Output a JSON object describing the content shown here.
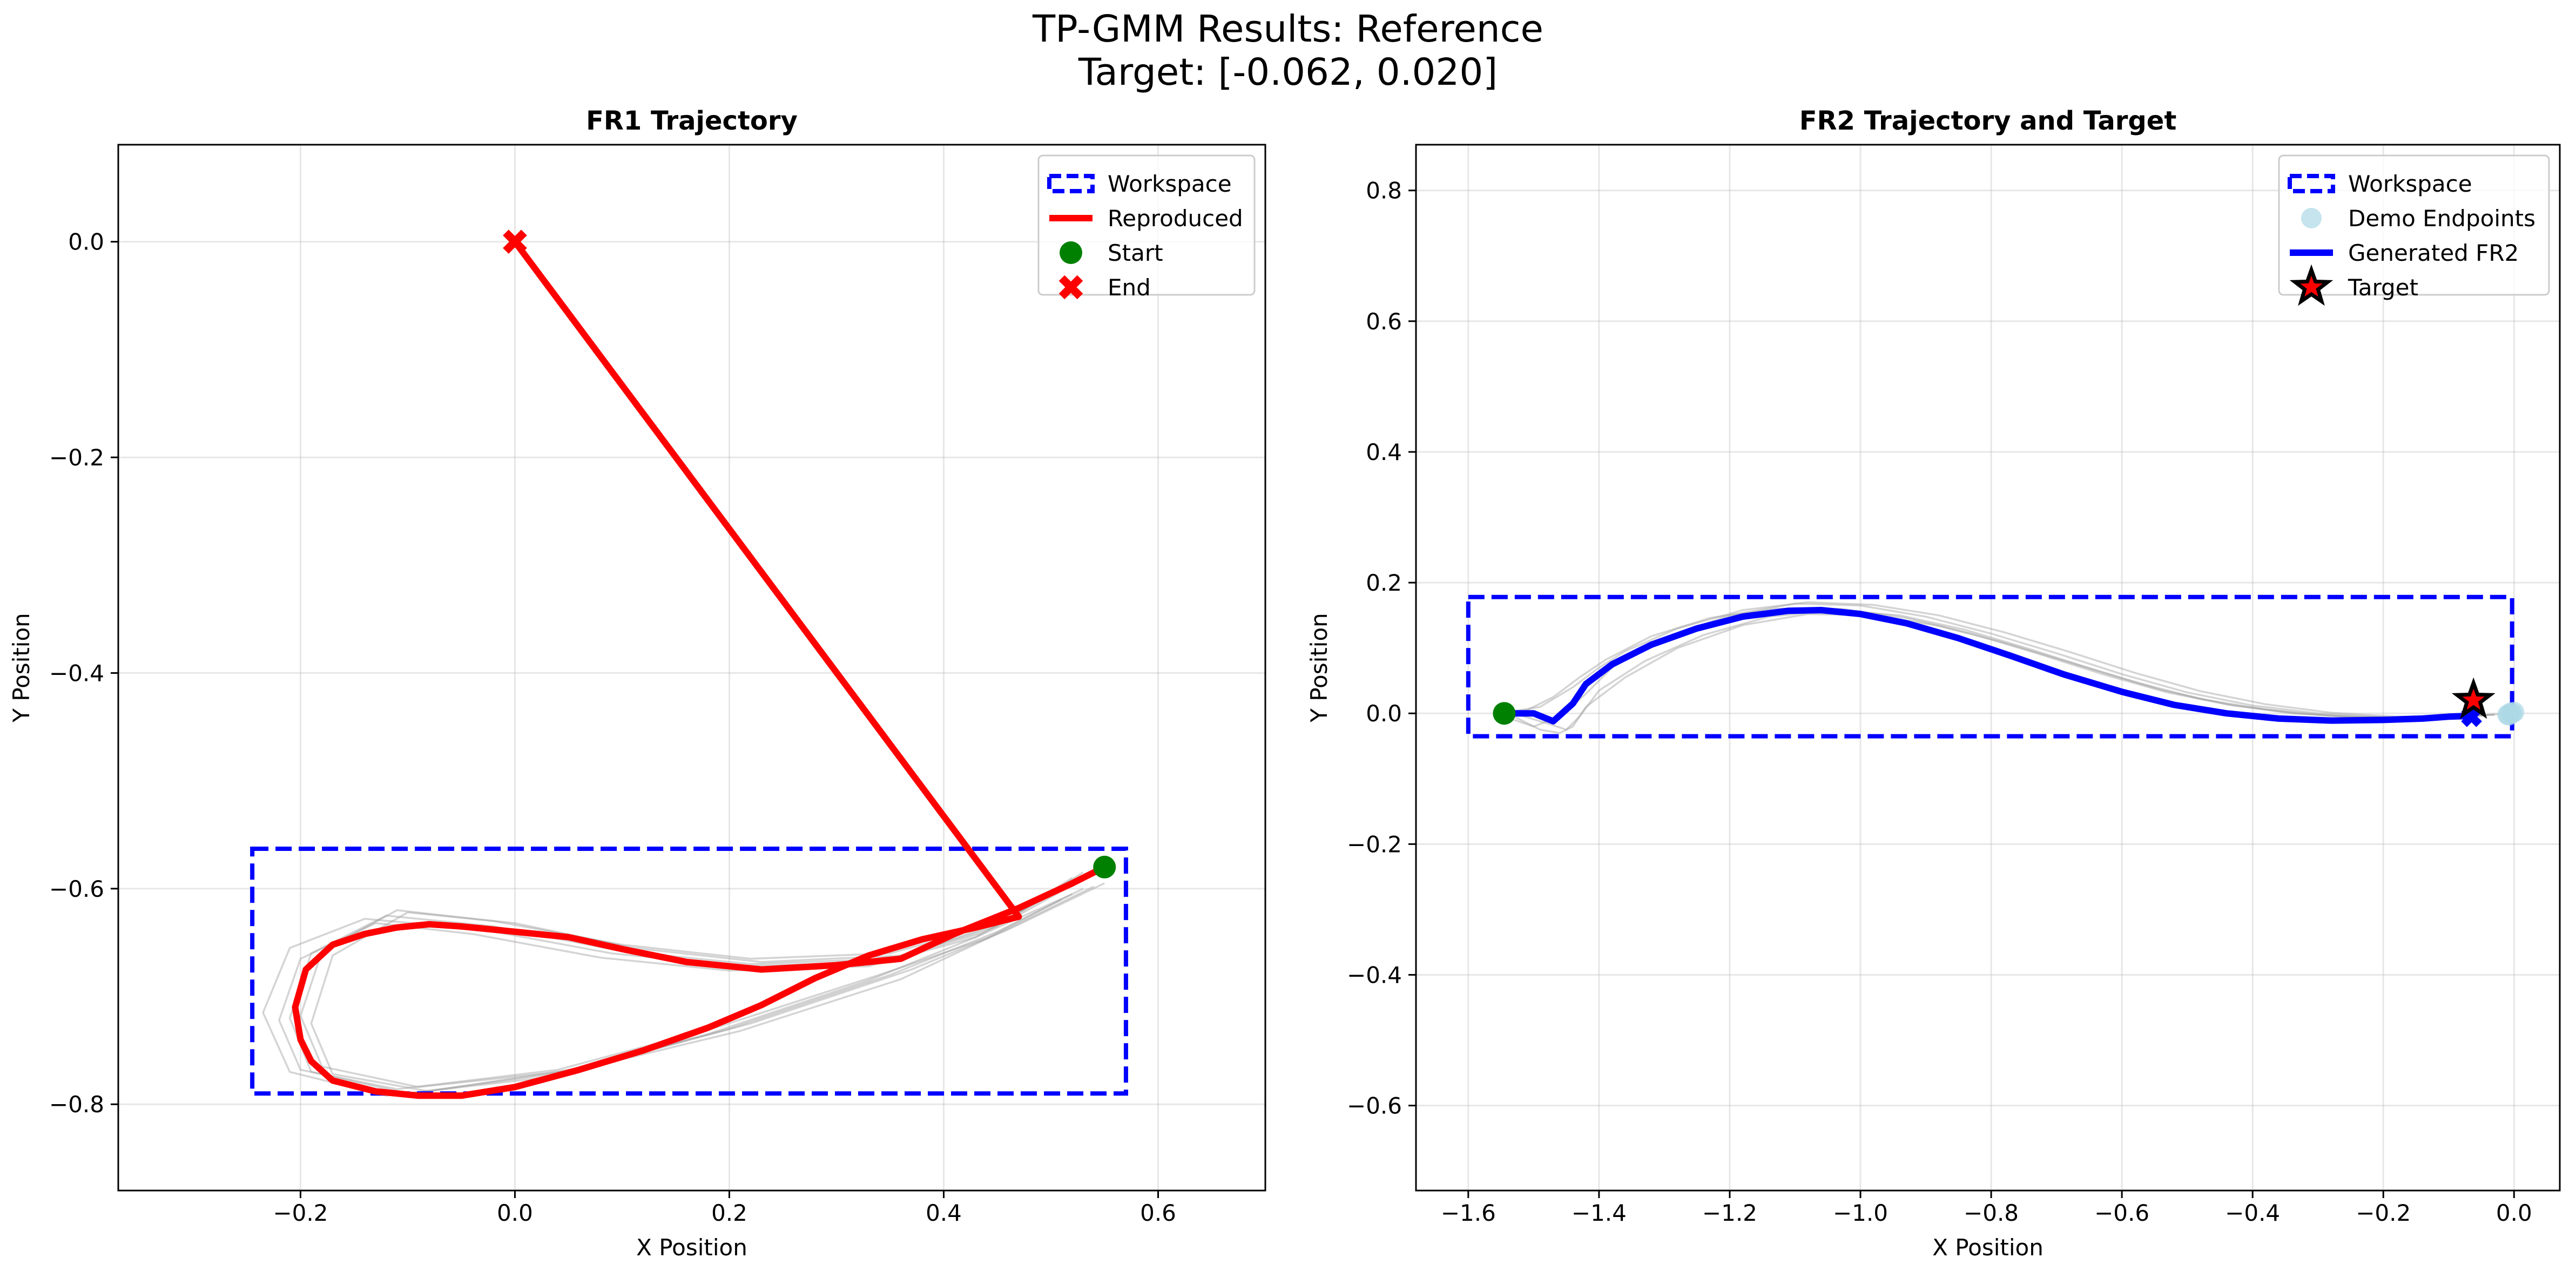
{
  "figure": {
    "suptitle_line1": "TP-GMM Results: Reference",
    "suptitle_line2": "Target: [-0.062, 0.020]"
  },
  "colors": {
    "workspace": "#0000ff",
    "reproduced": "#ff0000",
    "start": "#008000",
    "end": "#ff0000",
    "demo": "#a0a0a0",
    "demo_endpoints": "#add8e6",
    "generated": "#0000ff",
    "target_fill": "#ff0000",
    "target_edge": "#000000"
  },
  "chart_data": [
    {
      "type": "line",
      "title": "FR1 Trajectory",
      "xlabel": "X Position",
      "ylabel": "Y Position",
      "xlim": [
        -0.37,
        0.7
      ],
      "ylim": [
        -0.88,
        0.09
      ],
      "xticks": [
        -0.2,
        0.0,
        0.2,
        0.4,
        0.6
      ],
      "xtick_labels": [
        "−0.2",
        "0.0",
        "0.2",
        "0.4",
        "0.6"
      ],
      "yticks": [
        0.0,
        -0.2,
        -0.4,
        -0.6,
        -0.8
      ],
      "ytick_labels": [
        "0.0",
        "−0.2",
        "−0.4",
        "−0.6",
        "−0.8"
      ],
      "grid": true,
      "legend_position": "top-right",
      "legend": [
        "Workspace",
        "Reproduced",
        "Start",
        "End"
      ],
      "workspace": {
        "x": [
          -0.245,
          0.57
        ],
        "y": [
          -0.79,
          -0.563
        ]
      },
      "reproduced": {
        "x": [
          0.55,
          0.52,
          0.47,
          0.41,
          0.36,
          0.3,
          0.23,
          0.16,
          0.1,
          0.05,
          0.0,
          -0.05,
          -0.08,
          -0.11,
          -0.14,
          -0.17,
          -0.195,
          -0.205,
          -0.2,
          -0.19,
          -0.17,
          -0.13,
          -0.09,
          -0.05,
          0.0,
          0.06,
          0.12,
          0.18,
          0.23,
          0.28,
          0.33,
          0.38,
          0.43,
          0.47,
          0.0
        ],
        "y": [
          -0.58,
          -0.595,
          -0.618,
          -0.642,
          -0.665,
          -0.671,
          -0.675,
          -0.668,
          -0.656,
          -0.645,
          -0.64,
          -0.635,
          -0.633,
          -0.636,
          -0.642,
          -0.652,
          -0.675,
          -0.71,
          -0.74,
          -0.76,
          -0.778,
          -0.788,
          -0.792,
          -0.792,
          -0.784,
          -0.768,
          -0.75,
          -0.729,
          -0.708,
          -0.683,
          -0.662,
          -0.647,
          -0.636,
          -0.626,
          0.0
        ]
      },
      "demos": [
        {
          "x": [
            0.53,
            0.45,
            0.35,
            0.22,
            0.1,
            -0.02,
            -0.12,
            -0.19,
            -0.21,
            -0.19,
            -0.1,
            0.05,
            0.2,
            0.35,
            0.45,
            0.53
          ],
          "y": [
            -0.585,
            -0.635,
            -0.665,
            -0.67,
            -0.658,
            -0.635,
            -0.625,
            -0.66,
            -0.72,
            -0.77,
            -0.79,
            -0.77,
            -0.73,
            -0.68,
            -0.64,
            -0.6
          ]
        },
        {
          "x": [
            0.52,
            0.44,
            0.34,
            0.21,
            0.09,
            -0.03,
            -0.14,
            -0.21,
            -0.235,
            -0.21,
            -0.12,
            0.03,
            0.18,
            0.33,
            0.43,
            0.52
          ],
          "y": [
            -0.59,
            -0.64,
            -0.668,
            -0.672,
            -0.66,
            -0.638,
            -0.628,
            -0.655,
            -0.715,
            -0.77,
            -0.792,
            -0.775,
            -0.735,
            -0.685,
            -0.645,
            -0.605
          ]
        },
        {
          "x": [
            0.55,
            0.46,
            0.36,
            0.23,
            0.11,
            0.0,
            -0.1,
            -0.17,
            -0.19,
            -0.17,
            -0.08,
            0.07,
            0.22,
            0.37,
            0.46,
            0.55
          ],
          "y": [
            -0.58,
            -0.63,
            -0.662,
            -0.668,
            -0.655,
            -0.632,
            -0.622,
            -0.662,
            -0.725,
            -0.772,
            -0.788,
            -0.765,
            -0.725,
            -0.675,
            -0.638,
            -0.595
          ]
        },
        {
          "x": [
            0.51,
            0.43,
            0.33,
            0.2,
            0.08,
            -0.04,
            -0.13,
            -0.2,
            -0.22,
            -0.2,
            -0.11,
            0.04,
            0.19,
            0.34,
            0.44,
            0.51
          ],
          "y": [
            -0.6,
            -0.645,
            -0.672,
            -0.676,
            -0.664,
            -0.642,
            -0.632,
            -0.665,
            -0.722,
            -0.768,
            -0.786,
            -0.768,
            -0.728,
            -0.68,
            -0.646,
            -0.61
          ]
        },
        {
          "x": [
            0.54,
            0.45,
            0.35,
            0.22,
            0.1,
            -0.02,
            -0.11,
            -0.18,
            -0.2,
            -0.18,
            -0.09,
            0.06,
            0.21,
            0.36,
            0.45,
            0.54
          ],
          "y": [
            -0.585,
            -0.632,
            -0.66,
            -0.665,
            -0.652,
            -0.63,
            -0.62,
            -0.658,
            -0.718,
            -0.765,
            -0.784,
            -0.768,
            -0.732,
            -0.684,
            -0.642,
            -0.598
          ]
        }
      ],
      "start": {
        "x": 0.55,
        "y": -0.58
      },
      "end": {
        "x": 0.0,
        "y": 0.0
      }
    },
    {
      "type": "line",
      "title": "FR2 Trajectory and Target",
      "xlabel": "X Position",
      "ylabel": "Y Position",
      "xlim": [
        -1.68,
        0.07
      ],
      "ylim": [
        -0.73,
        0.87
      ],
      "xticks": [
        -1.6,
        -1.4,
        -1.2,
        -1.0,
        -0.8,
        -0.6,
        -0.4,
        -0.2,
        0.0
      ],
      "xtick_labels": [
        "−1.6",
        "−1.4",
        "−1.2",
        "−1.0",
        "−0.8",
        "−0.6",
        "−0.4",
        "−0.2",
        "0.0"
      ],
      "yticks": [
        0.8,
        0.6,
        0.4,
        0.2,
        0.0,
        -0.2,
        -0.4,
        -0.6
      ],
      "ytick_labels": [
        "0.8",
        "0.6",
        "0.4",
        "0.2",
        "0.0",
        "−0.2",
        "−0.4",
        "−0.6"
      ],
      "grid": true,
      "legend_position": "top-right",
      "legend": [
        "Workspace",
        "Demo Endpoints",
        "Generated FR2",
        "Target"
      ],
      "workspace": {
        "x": [
          -1.6,
          -0.003
        ],
        "y": [
          -0.035,
          0.178
        ]
      },
      "generated": {
        "x": [
          -1.545,
          -1.5,
          -1.47,
          -1.44,
          -1.42,
          -1.38,
          -1.32,
          -1.25,
          -1.18,
          -1.11,
          -1.06,
          -1.0,
          -0.93,
          -0.85,
          -0.77,
          -0.69,
          -0.6,
          -0.52,
          -0.44,
          -0.36,
          -0.28,
          -0.2,
          -0.14,
          -0.1,
          -0.07
        ],
        "y": [
          0.0,
          0.0,
          -0.012,
          0.015,
          0.045,
          0.075,
          0.105,
          0.13,
          0.148,
          0.157,
          0.158,
          0.152,
          0.138,
          0.115,
          0.088,
          0.06,
          0.033,
          0.013,
          0.0,
          -0.008,
          -0.011,
          -0.01,
          -0.008,
          -0.005,
          -0.004
        ]
      },
      "demos": [
        {
          "x": [
            -1.56,
            -1.5,
            -1.46,
            -1.42,
            -1.38,
            -1.3,
            -1.2,
            -1.1,
            -1.0,
            -0.9,
            -0.8,
            -0.7,
            -0.6,
            -0.5,
            -0.4,
            -0.3,
            -0.2,
            -0.1,
            -0.03
          ],
          "y": [
            0.0,
            -0.02,
            -0.005,
            0.03,
            0.07,
            0.115,
            0.15,
            0.168,
            0.165,
            0.148,
            0.122,
            0.092,
            0.06,
            0.032,
            0.012,
            0.0,
            -0.006,
            -0.005,
            -0.002
          ]
        },
        {
          "x": [
            -1.53,
            -1.48,
            -1.45,
            -1.43,
            -1.4,
            -1.33,
            -1.24,
            -1.14,
            -1.04,
            -0.94,
            -0.84,
            -0.74,
            -0.64,
            -0.54,
            -0.44,
            -0.34,
            -0.24,
            -0.14,
            -0.04
          ],
          "y": [
            0.0,
            -0.015,
            -0.025,
            -0.005,
            0.035,
            0.08,
            0.12,
            0.148,
            0.158,
            0.15,
            0.128,
            0.098,
            0.066,
            0.036,
            0.014,
            0.0,
            -0.006,
            -0.006,
            -0.003
          ]
        },
        {
          "x": [
            -1.55,
            -1.49,
            -1.44,
            -1.4,
            -1.36,
            -1.28,
            -1.18,
            -1.08,
            -0.98,
            -0.88,
            -0.78,
            -0.68,
            -0.58,
            -0.48,
            -0.38,
            -0.28,
            -0.18,
            -0.08,
            -0.02
          ],
          "y": [
            0.0,
            0.01,
            0.04,
            0.07,
            0.095,
            0.13,
            0.158,
            0.17,
            0.166,
            0.15,
            0.124,
            0.094,
            0.062,
            0.034,
            0.014,
            0.001,
            -0.005,
            -0.004,
            -0.001
          ]
        },
        {
          "x": [
            -1.54,
            -1.49,
            -1.46,
            -1.44,
            -1.42,
            -1.36,
            -1.28,
            -1.18,
            -1.08,
            -0.98,
            -0.88,
            -0.78,
            -0.68,
            -0.58,
            -0.48,
            -0.38,
            -0.28,
            -0.15,
            -0.05
          ],
          "y": [
            0.0,
            -0.025,
            -0.03,
            -0.02,
            0.01,
            0.055,
            0.1,
            0.135,
            0.152,
            0.15,
            0.134,
            0.108,
            0.078,
            0.048,
            0.022,
            0.006,
            -0.004,
            -0.007,
            -0.003
          ]
        },
        {
          "x": [
            -1.56,
            -1.51,
            -1.47,
            -1.43,
            -1.39,
            -1.32,
            -1.23,
            -1.13,
            -1.03,
            -0.93,
            -0.83,
            -0.73,
            -0.63,
            -0.53,
            -0.43,
            -0.33,
            -0.23,
            -0.12,
            -0.03
          ],
          "y": [
            0.0,
            0.005,
            0.025,
            0.055,
            0.082,
            0.118,
            0.146,
            0.16,
            0.16,
            0.146,
            0.122,
            0.092,
            0.06,
            0.032,
            0.012,
            0.0,
            -0.006,
            -0.006,
            -0.002
          ]
        }
      ],
      "start": {
        "x": -1.545,
        "y": 0.0
      },
      "end": {
        "x": -0.065,
        "y": -0.005
      },
      "demo_endpoints": {
        "x": [
          -0.003,
          -0.008,
          0.0,
          -0.005,
          -0.01
        ],
        "y": [
          0.0,
          -0.003,
          0.002,
          0.001,
          -0.002
        ]
      },
      "target": {
        "x": -0.062,
        "y": 0.02
      }
    }
  ]
}
